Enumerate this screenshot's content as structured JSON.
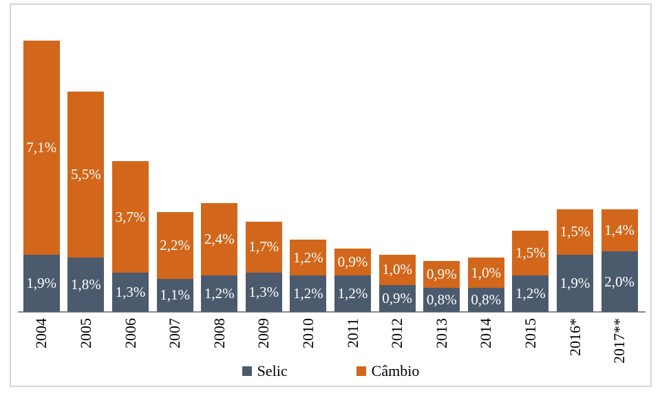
{
  "chart_data": {
    "type": "bar",
    "stacked": true,
    "orientation": "vertical",
    "title": "",
    "xlabel": "",
    "ylabel": "",
    "grid": false,
    "legend_position": "bottom",
    "ylim": [
      0,
      9.5
    ],
    "value_label_color": "#FFFFFF",
    "axis_line_color": "#8A8A8A",
    "categories": [
      "2004",
      "2005",
      "2006",
      "2007",
      "2008",
      "2009",
      "2010",
      "2011",
      "2012",
      "2013",
      "2014",
      "2015",
      "2016*",
      "2017**"
    ],
    "series": [
      {
        "name": "Selic",
        "color": "#4C5A6E",
        "values": [
          1.9,
          1.8,
          1.3,
          1.1,
          1.2,
          1.3,
          1.2,
          1.2,
          0.9,
          0.8,
          0.8,
          1.2,
          1.9,
          2.0
        ],
        "labels": [
          "1,9%",
          "1,8%",
          "1,3%",
          "1,1%",
          "1,2%",
          "1,3%",
          "1,2%",
          "1,2%",
          "0,9%",
          "0,8%",
          "0,8%",
          "1,2%",
          "1,9%",
          "2,0%"
        ]
      },
      {
        "name": "Câmbio",
        "color": "#D2671C",
        "values": [
          7.1,
          5.5,
          3.7,
          2.2,
          2.4,
          1.7,
          1.2,
          0.9,
          1.0,
          0.9,
          1.0,
          1.5,
          1.5,
          1.4
        ],
        "labels": [
          "7,1%",
          "5,5%",
          "3,7%",
          "2,2%",
          "2,4%",
          "1,7%",
          "1,2%",
          "0,9%",
          "1,0%",
          "0,9%",
          "1,0%",
          "1,5%",
          "1,5%",
          "1,4%"
        ]
      }
    ]
  },
  "frame": {
    "border_color": "#D6D6D6",
    "background": "#FFFFFF"
  }
}
